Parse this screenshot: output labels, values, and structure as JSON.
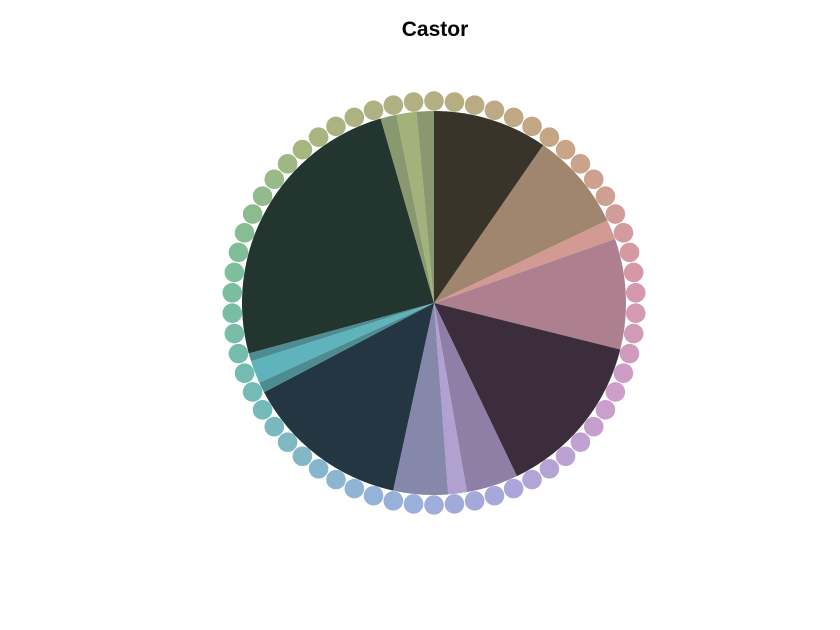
{
  "chart_data": {
    "type": "pie",
    "title": "Castor",
    "legend": "none",
    "grid": false,
    "slices": [
      {
        "value": 8.6,
        "color": "#38342a"
      },
      {
        "value": 7.4,
        "color": "#a0866e"
      },
      {
        "value": 1.5,
        "color": "#d39a94"
      },
      {
        "value": 8.3,
        "color": "#ae7f8e"
      },
      {
        "value": 12.5,
        "color": "#3b2d3b"
      },
      {
        "value": 3.9,
        "color": "#8f7fa6"
      },
      {
        "value": 1.4,
        "color": "#b0a1d1"
      },
      {
        "value": 4.1,
        "color": "#8688ab"
      },
      {
        "value": 12.4,
        "color": "#233641"
      },
      {
        "value": 0.8,
        "color": "#4d8d91"
      },
      {
        "value": 1.7,
        "color": "#5fb4bb"
      },
      {
        "value": 0.6,
        "color": "#4d8d91"
      },
      {
        "value": 22.1,
        "color": "#22352f"
      },
      {
        "value": 1.2,
        "color": "#8a9870"
      },
      {
        "value": 1.5,
        "color": "#a2b27b"
      },
      {
        "value": 1.3,
        "color": "#8a9870"
      }
    ],
    "ring": {
      "count": 62,
      "colors": [
        "#b4ae83",
        "#c9a485",
        "#d698a5",
        "#cc9fcc",
        "#a9a6da",
        "#92b4d8",
        "#73bab8",
        "#7cbf9a",
        "#a6b680",
        "#b4ae83"
      ]
    }
  }
}
